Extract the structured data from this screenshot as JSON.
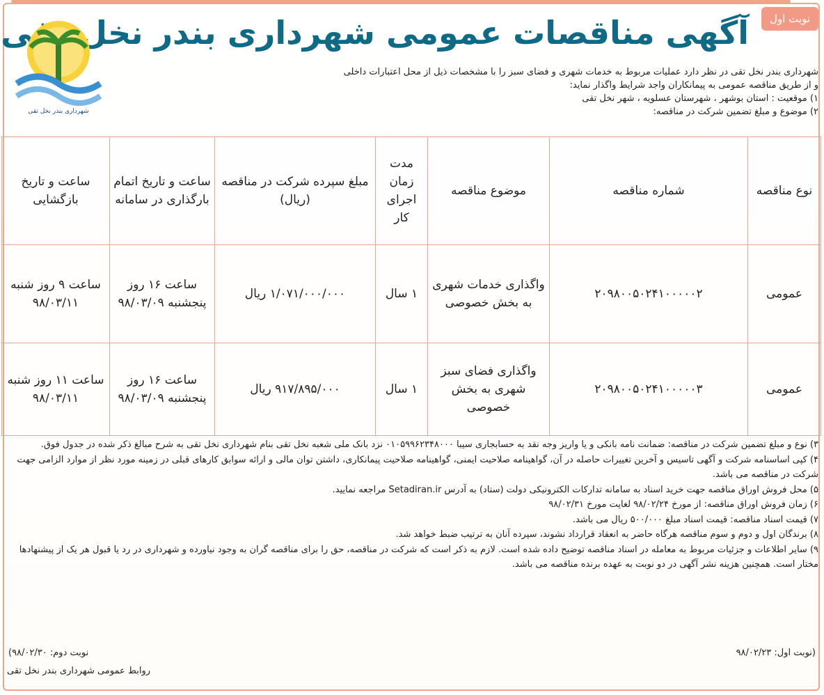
{
  "badge": "نوبت اول",
  "title": "آگهی مناقصات عمومی شهرداری بندر نخل تقی",
  "logo": {
    "text": "شهرداری بندر نخل تقی"
  },
  "intro": [
    "شهرداری بندر نخل تقی در نظر دارد عملیات مربوط به خدمات شهری و فضای سبز را با مشخصات ذیل از محل اعتبارات داخلی",
    "و از طریق مناقصه عمومی به پیمانکاران واجد شرایط واگذار نماید:",
    "۱) موقعیت : استان بوشهر ، شهرستان عسلویه ، شهر نخل تقی",
    "۲) موضوع و مبلغ تضمین شرکت در مناقصه:"
  ],
  "table": {
    "headers": [
      "نوع مناقصه",
      "شماره مناقصه",
      "موضوع مناقصه",
      "مدت زمان اجرای کار",
      "مبلغ سپرده شرکت در مناقصه (ریال)",
      "ساعت و تاریخ اتمام بارگذاری در سامانه",
      "ساعت و تاریخ بازگشایی"
    ],
    "rows": [
      [
        "عمومی",
        "۲۰۹۸۰۰۵۰۲۴۱۰۰۰۰۰۲",
        "واگذاری خدمات شهری به بخش خصوصی",
        "۱ سال",
        "۱/۰۷۱/۰۰۰/۰۰۰ ریال",
        "ساعت ۱۶ روز پنجشنبه ۹۸/۰۳/۰۹",
        "ساعت ۹ روز شنبه ۹۸/۰۳/۱۱"
      ],
      [
        "عمومی",
        "۲۰۹۸۰۰۵۰۲۴۱۰۰۰۰۰۳",
        "واگذاری فضای سبز شهری به بخش خصوصی",
        "۱ سال",
        "۹۱۷/۸۹۵/۰۰۰ ریال",
        "ساعت ۱۶ روز پنجشنبه ۹۸/۰۳/۰۹",
        "ساعت ۱۱ روز شنبه ۹۸/۰۳/۱۱"
      ]
    ]
  },
  "terms": [
    "۳) نوع و مبلغ تضمین شرکت در مناقصه: ضمانت نامه بانکی و یا واریز وجه نقد به حسابجاری سیبا ۰۱۰۵۹۹۶۲۳۴۸۰۰۰ نزد بانک ملی شعبه نخل تقی بنام شهرداری نخل تقی به شرح مبالغ ذکر شده در جدول فوق.",
    "۴) کپی اساسنامه شرکت و آگهی تاسیس و آخرین تغییرات حاصله در آن، گواهینامه صلاحیت ایمنی، گواهینامه صلاحیت پیمانکاری، داشتن توان مالی و ارائه سوابق کارهای قبلی در زمینه مورد نظر از موارد الزامی جهت شرکت در مناقصه می باشد.",
    "۵) محل فروش اوراق مناقصه جهت خرید اسناد به سامانه تدارکات الکترونیکی دولت (ستاد) به آدرس Setadiran.ir مراجعه نمایید.",
    "۶) زمان فروش اوراق مناقصه: از مورخ ۹۸/۰۲/۲۴ لغایت مورخ ۹۸/۰۲/۳۱",
    "۷) قیمت اسناد مناقصه: قیمت اسناد مبلغ ۵۰۰/۰۰۰ ریال می باشد.",
    "۸) برندگان اول و دوم و سوم مناقصه هرگاه حاضر به انعقاد قرارداد نشوند، سپرده آنان به ترتیب ضبط خواهد شد.",
    "۹) سایر اطلاعات و جزئیات مربوط به معامله در اسناد مناقصه توضیح داده شده است. لازم به ذکر است که شرکت در مناقصه، حق را برای مناقصه گران به وجود نیاورده و شهرداری در رد یا قبول هر یک از پیشنهادها مختار است. همچنین هزینه نشر آگهی در دو نوبت به عهده برنده مناقصه می باشد."
  ],
  "footer": {
    "first_run": "(نوبت اول: ۹۸/۰۲/۲۳",
    "second_run": "نوبت دوم: ۹۸/۰۲/۳۰)",
    "signature": "روابط عمومی شهرداری بندر نخل تقی"
  },
  "colors": {
    "title": "#0f6a86",
    "border": "#e6a58c",
    "badge": "#f29a86"
  }
}
